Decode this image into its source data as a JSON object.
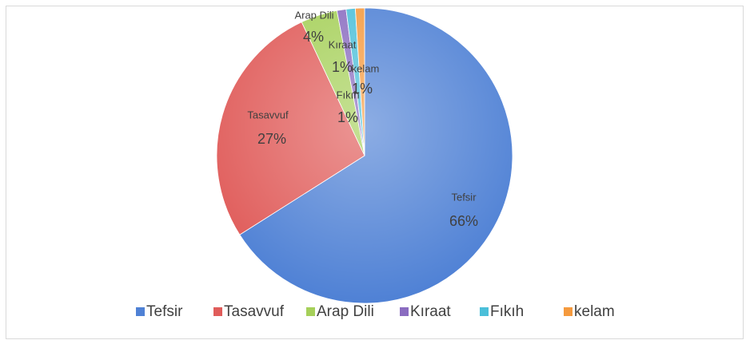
{
  "chart_data": {
    "type": "pie",
    "categories": [
      "Tefsir",
      "Tasavvuf",
      "Arap Dili",
      "Kıraat",
      "Fıkıh",
      "kelam"
    ],
    "values": [
      66,
      27,
      4,
      1,
      1,
      1
    ],
    "value_labels": [
      "66%",
      "27%",
      "4%",
      "1%",
      "1%",
      "1%"
    ],
    "colors": [
      "#4f81d5",
      "#e05c5a",
      "#a6d05a",
      "#8a6cc0",
      "#4bbfd9",
      "#f59a3e"
    ],
    "legend": "bottom"
  }
}
